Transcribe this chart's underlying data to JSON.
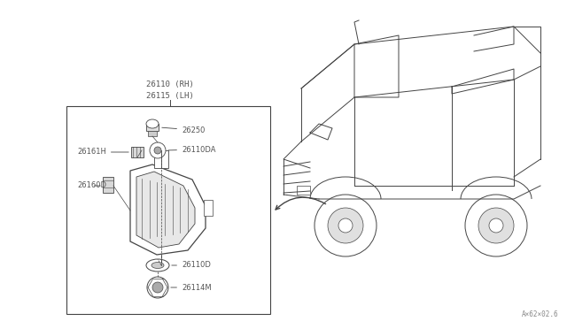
{
  "bg_color": "#ffffff",
  "line_color": "#444444",
  "text_color": "#555555",
  "fig_w": 6.4,
  "fig_h": 3.72,
  "dpi": 100,
  "title_line1": "26110 (RH)",
  "title_line2": "26115 (LH)",
  "watermark": "A×62×02.6",
  "label_fs": 6.0,
  "title_fs": 6.5
}
